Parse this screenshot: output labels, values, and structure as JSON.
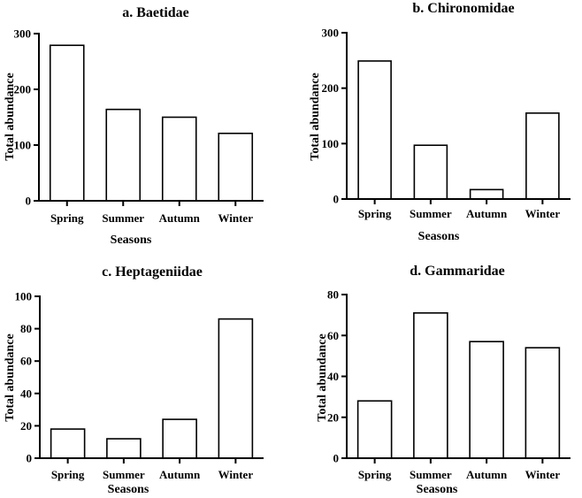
{
  "chart_data": [
    {
      "type": "bar",
      "title": "a. Baetidae",
      "xlabel": "Seasons",
      "ylabel": "Total abundance",
      "categories": [
        "Spring",
        "Summer",
        "Autumn",
        "Winter"
      ],
      "values": [
        279,
        164,
        150,
        121
      ],
      "ylim": [
        0,
        300
      ],
      "yticks": [
        0,
        100,
        200,
        300
      ]
    },
    {
      "type": "bar",
      "title": "b. Chironomidae",
      "xlabel": "Seasons",
      "ylabel": "Total abundance",
      "categories": [
        "Spring",
        "Summer",
        "Autumn",
        "Winter"
      ],
      "values": [
        249,
        97,
        17,
        155
      ],
      "ylim": [
        0,
        300
      ],
      "yticks": [
        0,
        100,
        200,
        300
      ]
    },
    {
      "type": "bar",
      "title": "c. Heptageniidae",
      "xlabel": "Seasons",
      "ylabel": "Total abundance",
      "categories": [
        "Spring",
        "Summer",
        "Autumn",
        "Winter"
      ],
      "values": [
        18,
        12,
        24,
        86
      ],
      "ylim": [
        0,
        100
      ],
      "yticks": [
        0,
        20,
        40,
        60,
        80,
        100
      ]
    },
    {
      "type": "bar",
      "title": "d. Gammaridae",
      "xlabel": "Seasons",
      "ylabel": "Total abundance",
      "categories": [
        "Spring",
        "Summer",
        "Autumn",
        "Winter"
      ],
      "values": [
        28,
        71,
        57,
        54
      ],
      "ylim": [
        0,
        80
      ],
      "yticks": [
        0,
        20,
        40,
        60,
        80
      ]
    }
  ]
}
